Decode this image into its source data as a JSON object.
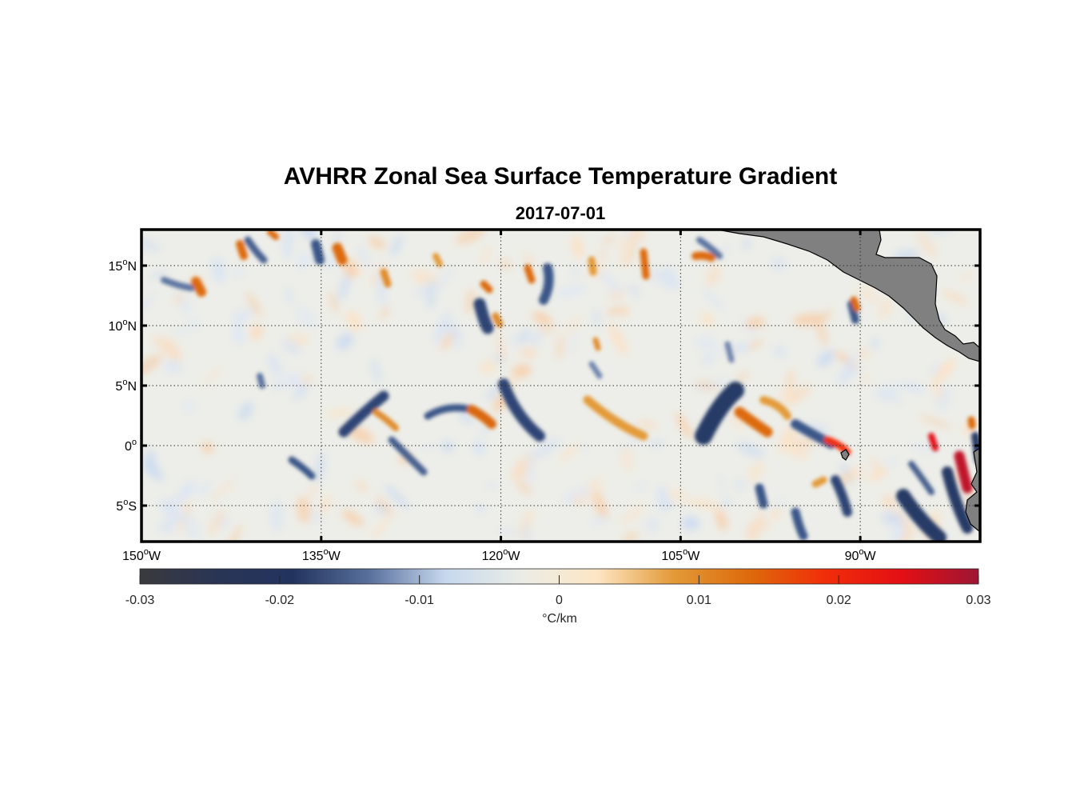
{
  "figure": {
    "title": "AVHRR Zonal Sea Surface Temperature Gradient",
    "subtitle": "2017-07-01"
  },
  "map": {
    "lon_range": [
      -150,
      -80
    ],
    "lat_range": [
      -8,
      18
    ],
    "lat_ticks": [
      {
        "value": 15,
        "num": "15",
        "hemi": "N"
      },
      {
        "value": 10,
        "num": "10",
        "hemi": "N"
      },
      {
        "value": 5,
        "num": "5",
        "hemi": "N"
      },
      {
        "value": 0,
        "num": "0",
        "hemi": ""
      },
      {
        "value": -5,
        "num": "5",
        "hemi": "S"
      }
    ],
    "lon_ticks": [
      {
        "value": -150,
        "num": "150",
        "hemi": "W"
      },
      {
        "value": -135,
        "num": "135",
        "hemi": "W"
      },
      {
        "value": -120,
        "num": "120",
        "hemi": "W"
      },
      {
        "value": -105,
        "num": "105",
        "hemi": "W"
      },
      {
        "value": -90,
        "num": "90",
        "hemi": "W"
      }
    ],
    "land_color": "#808080",
    "grid": "dotted"
  },
  "colorbar": {
    "min": -0.03,
    "max": 0.03,
    "tick_labels": [
      "-0.03",
      "-0.02",
      "-0.01",
      "0",
      "0.01",
      "0.02",
      "0.03"
    ],
    "units": "°C/km",
    "colors": [
      "#3a3a3c",
      "#2a3556",
      "#22345e",
      "#586f9c",
      "#c6d8ee",
      "#ebece6",
      "#fde6c4",
      "#e39a38",
      "#dd6a0b",
      "#f12d0a",
      "#e30f14",
      "#9c1634"
    ]
  }
}
